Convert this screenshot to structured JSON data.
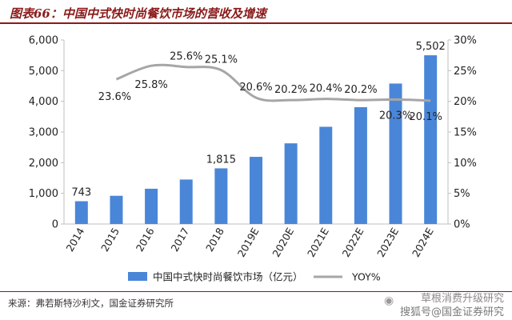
{
  "header": {
    "title": "图表66：中国中式快时尚餐饮市场的营收及增速"
  },
  "footer": {
    "source": "来源：弗若斯特沙利文，国金证券研究所",
    "watermark_icon": "wechat-icon",
    "watermark_line1": "草根消费升级研究",
    "watermark_line2": "搜狐号@国金证券研究"
  },
  "colors": {
    "bar": "#4a86d8",
    "line": "#a6a6a6",
    "title": "#8b1a1a",
    "axis": "#bfbfbf"
  },
  "chart_data": {
    "type": "bar",
    "categories": [
      "2014",
      "2015",
      "2016",
      "2017",
      "2018",
      "2019E",
      "2020E",
      "2021E",
      "2022E",
      "2023E",
      "2024E"
    ],
    "series": [
      {
        "name": "中国中式快时尚餐饮市场（亿元）",
        "type": "bar",
        "axis": "left",
        "values": [
          743,
          920,
          1150,
          1450,
          1815,
          2190,
          2630,
          3170,
          3810,
          4580,
          5502
        ]
      },
      {
        "name": "YOY%",
        "type": "line",
        "axis": "right",
        "values": [
          null,
          23.6,
          25.8,
          25.6,
          25.1,
          20.6,
          20.2,
          20.4,
          20.2,
          20.3,
          20.1
        ]
      }
    ],
    "bar_data_labels": [
      {
        "index": 0,
        "text": "743"
      },
      {
        "index": 4,
        "text": "1,815"
      },
      {
        "index": 10,
        "text": "5,502"
      }
    ],
    "line_data_labels": [
      {
        "index": 1,
        "text": "23.6%"
      },
      {
        "index": 2,
        "text": "25.8%"
      },
      {
        "index": 3,
        "text": "25.6%"
      },
      {
        "index": 4,
        "text": "25.1%"
      },
      {
        "index": 5,
        "text": "20.6%"
      },
      {
        "index": 6,
        "text": "20.2%"
      },
      {
        "index": 7,
        "text": "20.4%"
      },
      {
        "index": 8,
        "text": "20.2%"
      },
      {
        "index": 9,
        "text": "20.3%"
      },
      {
        "index": 10,
        "text": "20.1%"
      }
    ],
    "y_left": {
      "min": 0,
      "max": 6000,
      "ticks": [
        "0",
        "1,000",
        "2,000",
        "3,000",
        "4,000",
        "5,000",
        "6,000"
      ]
    },
    "y_right": {
      "min": 0,
      "max": 30,
      "ticks": [
        "0%",
        "5%",
        "10%",
        "15%",
        "20%",
        "25%",
        "30%"
      ]
    },
    "grid": false,
    "legend_position": "bottom"
  }
}
